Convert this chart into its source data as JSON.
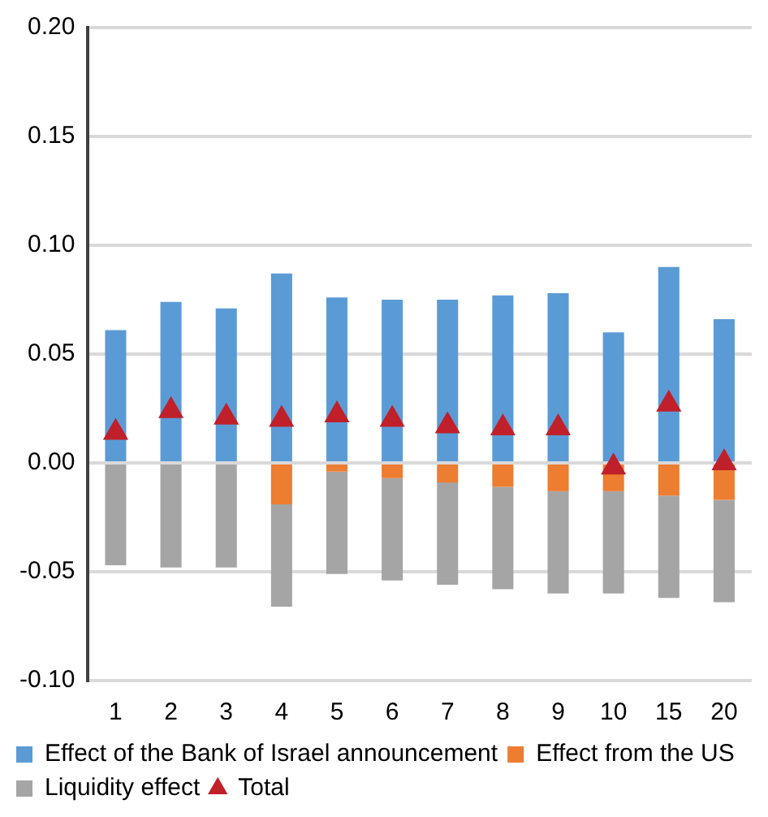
{
  "chart_data": {
    "type": "bar",
    "stacked": true,
    "categories": [
      "1",
      "2",
      "3",
      "4",
      "5",
      "6",
      "7",
      "8",
      "9",
      "10",
      "15",
      "20"
    ],
    "series": [
      {
        "name": "Effect of the Bank of Israel announcement",
        "color": "#5b9bd5",
        "values": [
          0.061,
          0.074,
          0.071,
          0.087,
          0.076,
          0.075,
          0.075,
          0.077,
          0.078,
          0.06,
          0.09,
          0.066
        ]
      },
      {
        "name": "Effect from the US",
        "color": "#ed7d31",
        "values": [
          0,
          0,
          0,
          -0.019,
          -0.004,
          -0.007,
          -0.009,
          -0.011,
          -0.013,
          -0.013,
          -0.015,
          -0.017
        ]
      },
      {
        "name": "Liquidity effect",
        "color": "#a5a5a5",
        "values": [
          -0.047,
          -0.048,
          -0.048,
          -0.047,
          -0.047,
          -0.047,
          -0.047,
          -0.047,
          -0.047,
          -0.047,
          -0.047,
          -0.047
        ]
      },
      {
        "name": "Total",
        "type": "scatter",
        "marker": "triangle",
        "color": "#c0202a",
        "values": [
          0.014,
          0.024,
          0.021,
          0.02,
          0.022,
          0.02,
          0.017,
          0.016,
          0.016,
          -0.002,
          0.027,
          0
        ]
      }
    ],
    "ylim": [
      -0.1,
      0.2
    ],
    "yticks": [
      {
        "value": -0.1,
        "label": "-0.10"
      },
      {
        "value": -0.05,
        "label": "-0.05"
      },
      {
        "value": 0,
        "label": "0.00"
      },
      {
        "value": 0.05,
        "label": "0.05"
      },
      {
        "value": 0.1,
        "label": "0.10"
      },
      {
        "value": 0.15,
        "label": "0.15"
      },
      {
        "value": 0.2,
        "label": "0.20"
      }
    ],
    "grid": "y",
    "legend": "bottom"
  }
}
